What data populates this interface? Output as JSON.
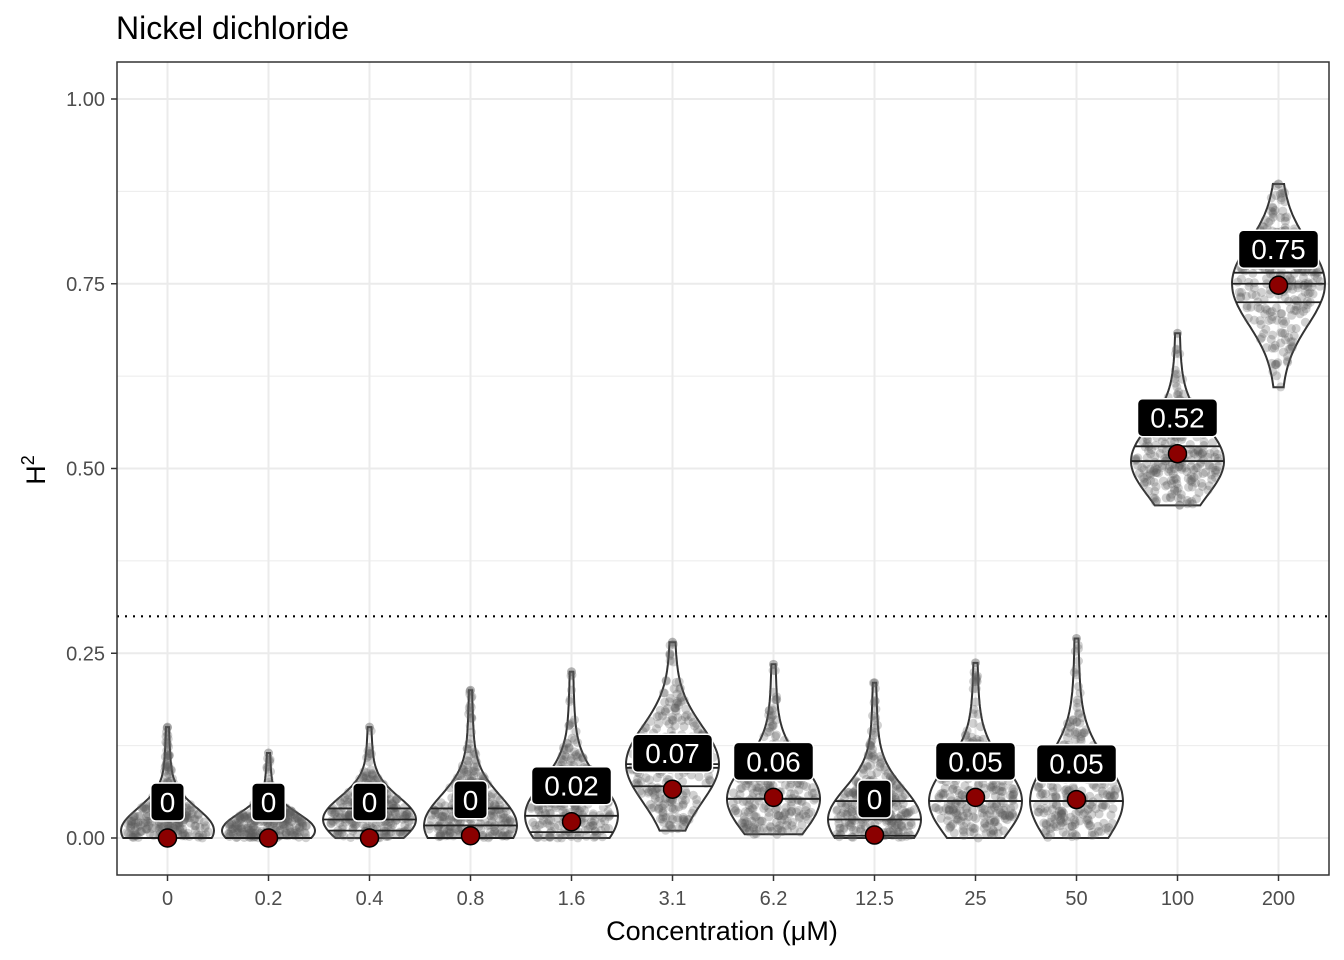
{
  "chart_data": {
    "type": "violin",
    "title": "Nickel dichloride",
    "xlabel": "Concentration (μM)",
    "ylabel": "H",
    "ylabel_superscript": "2",
    "ylim": [
      -0.05,
      1.05
    ],
    "yticks": [
      0.0,
      0.25,
      0.5,
      0.75,
      1.0
    ],
    "ytick_labels": [
      "0.00",
      "0.25",
      "0.50",
      "0.75",
      "1.00"
    ],
    "reference_line": 0.3,
    "grid": true,
    "colors": {
      "mean_point": "#8b0000",
      "label_bg": "#000000",
      "violin_line": "#333333",
      "jitter": "#5a5a5a",
      "grid": "#ebebeb"
    },
    "categories": [
      "0",
      "0.2",
      "0.4",
      "0.8",
      "1.6",
      "3.1",
      "6.2",
      "12.5",
      "25",
      "50",
      "100",
      "200"
    ],
    "groups": [
      {
        "x": "0",
        "mean": 0.0,
        "label": "0",
        "min": 0.0,
        "max": 0.15,
        "quantiles": [
          0.0,
          0.0,
          0.0
        ]
      },
      {
        "x": "0.2",
        "mean": 0.0,
        "label": "0",
        "min": 0.0,
        "max": 0.115,
        "quantiles": [
          0.0,
          0.0,
          0.0
        ]
      },
      {
        "x": "0.4",
        "mean": 0.0,
        "label": "0",
        "min": 0.0,
        "max": 0.15,
        "quantiles": [
          0.01,
          0.025,
          0.04
        ]
      },
      {
        "x": "0.8",
        "mean": 0.003,
        "label": "0",
        "min": 0.0,
        "max": 0.2,
        "quantiles": [
          0.0,
          0.017,
          0.04
        ]
      },
      {
        "x": "1.6",
        "mean": 0.022,
        "label": "0.02",
        "min": 0.0,
        "max": 0.225,
        "quantiles": [
          0.008,
          0.03,
          0.052
        ]
      },
      {
        "x": "3.1",
        "mean": 0.066,
        "label": "0.07",
        "min": 0.01,
        "max": 0.265,
        "quantiles": [
          0.07,
          0.1,
          0.095
        ]
      },
      {
        "x": "6.2",
        "mean": 0.055,
        "label": "0.06",
        "min": 0.005,
        "max": 0.235,
        "quantiles": [
          0.053,
          0.053,
          0.085
        ]
      },
      {
        "x": "12.5",
        "mean": 0.004,
        "label": "0",
        "min": 0.0,
        "max": 0.21,
        "quantiles": [
          0.003,
          0.025,
          0.05
        ]
      },
      {
        "x": "25",
        "mean": 0.055,
        "label": "0.05",
        "min": 0.0,
        "max": 0.237,
        "quantiles": [
          0.05,
          0.05,
          0.085
        ]
      },
      {
        "x": "50",
        "mean": 0.052,
        "label": "0.05",
        "min": 0.0,
        "max": 0.27,
        "quantiles": [
          0.05,
          0.05,
          0.087
        ]
      },
      {
        "x": "100",
        "mean": 0.52,
        "label": "0.52",
        "min": 0.45,
        "max": 0.683,
        "quantiles": [
          0.51,
          0.51,
          0.53
        ]
      },
      {
        "x": "200",
        "mean": 0.748,
        "label": "0.75",
        "min": 0.61,
        "max": 0.885,
        "quantiles": [
          0.725,
          0.75,
          0.765
        ]
      }
    ]
  }
}
